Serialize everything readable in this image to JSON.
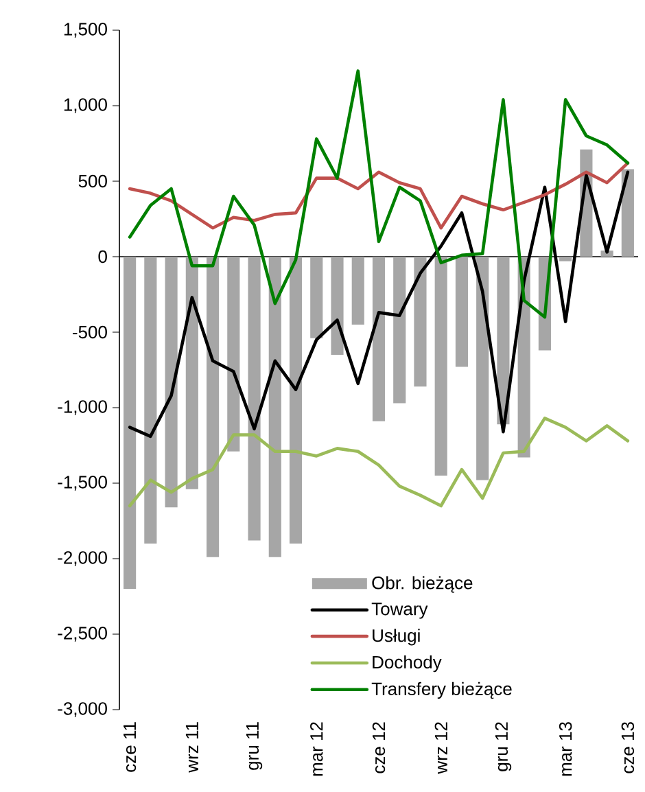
{
  "chart_data": {
    "type": "bar",
    "categories": [
      "cze 11",
      null,
      null,
      "wrz 11",
      null,
      null,
      "gru 11",
      null,
      null,
      "mar 12",
      null,
      null,
      "cze 12",
      null,
      null,
      "wrz 12",
      null,
      null,
      "gru 12",
      null,
      null,
      "mar 13",
      null,
      null,
      "cze 13"
    ],
    "series": [
      {
        "name": "Obr. bieżące",
        "type": "bar",
        "color": "#a6a6a6",
        "values": [
          -2200,
          -1900,
          -1660,
          -1540,
          -1990,
          -1290,
          -1880,
          -1990,
          -1900,
          -540,
          -650,
          -450,
          -1090,
          -970,
          -860,
          -1450,
          -730,
          -1480,
          -1110,
          -1330,
          -620,
          -30,
          710,
          40,
          580
        ]
      },
      {
        "name": "Towary",
        "type": "line",
        "color": "#000000",
        "values": [
          -1130,
          -1190,
          -920,
          -270,
          -690,
          -760,
          -1140,
          -690,
          -880,
          -550,
          -420,
          -840,
          -370,
          -390,
          -110,
          70,
          290,
          -230,
          -1160,
          -160,
          460,
          -430,
          540,
          30,
          560
        ]
      },
      {
        "name": "Usługi",
        "type": "line",
        "color": "#c0504d",
        "values": [
          450,
          420,
          370,
          280,
          190,
          260,
          240,
          280,
          290,
          520,
          520,
          450,
          560,
          490,
          450,
          190,
          400,
          350,
          310,
          360,
          410,
          480,
          560,
          490,
          620
        ]
      },
      {
        "name": "Dochody",
        "type": "line",
        "color": "#9bbb59",
        "values": [
          -1650,
          -1480,
          -1560,
          -1470,
          -1410,
          -1180,
          -1180,
          -1290,
          -1290,
          -1320,
          -1270,
          -1290,
          -1380,
          -1520,
          -1580,
          -1650,
          -1410,
          -1600,
          -1300,
          -1290,
          -1070,
          -1130,
          -1220,
          -1120,
          -1220
        ]
      },
      {
        "name": "Transfery bieżące",
        "type": "line",
        "color": "#008000",
        "values": [
          130,
          340,
          450,
          -60,
          -60,
          400,
          210,
          -310,
          -20,
          780,
          520,
          1230,
          100,
          460,
          370,
          -40,
          10,
          20,
          1040,
          -290,
          -400,
          1040,
          800,
          740,
          620
        ]
      }
    ],
    "ylim": [
      -3000,
      1500
    ],
    "yticks": [
      {
        "value": -3000,
        "label": "-3,000"
      },
      {
        "value": -2500,
        "label": "-2,500"
      },
      {
        "value": -2000,
        "label": "-2,000"
      },
      {
        "value": -1500,
        "label": "-1,500"
      },
      {
        "value": -1000,
        "label": "-1,000"
      },
      {
        "value": -500,
        "label": "-500"
      },
      0,
      500,
      {
        "value": 1000,
        "label": "1,000"
      },
      {
        "value": 1500,
        "label": "1,500"
      }
    ],
    "legend": "bottom right",
    "marker": "none",
    "line_style": "solid"
  }
}
